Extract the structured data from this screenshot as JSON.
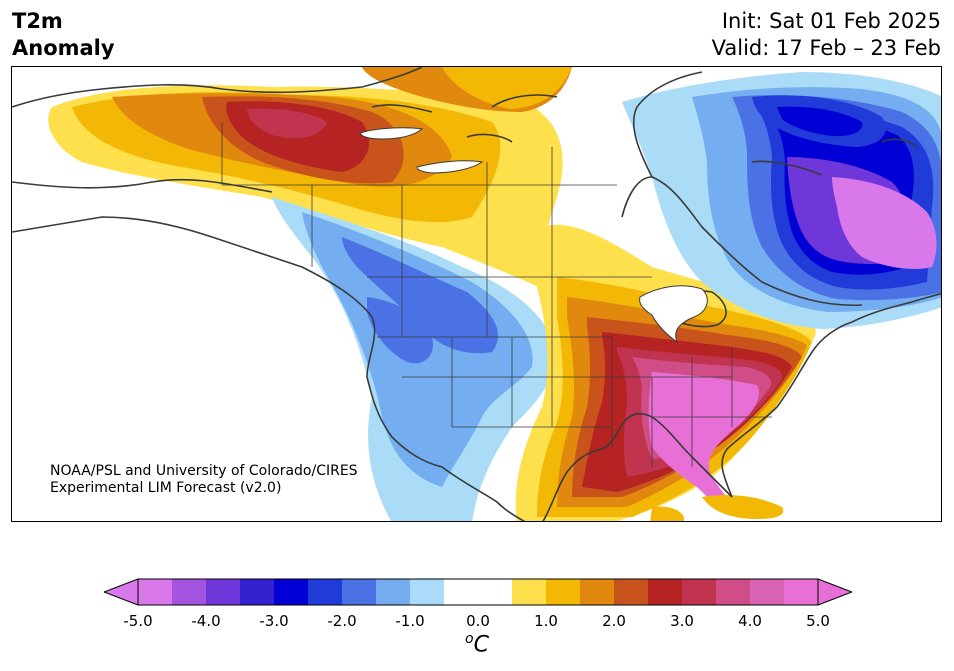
{
  "title": {
    "variable_line1": "T2m",
    "variable_line2": "Anomaly",
    "init": "Init: Sat 01 Feb 2025",
    "valid": "Valid: 17 Feb – 23 Feb"
  },
  "credit": {
    "line1": "NOAA/PSL and University of Colorado/CIRES",
    "line2": "Experimental LIM Forecast (v2.0)"
  },
  "colorbar": {
    "units_symbol": "o",
    "units_letter": "C",
    "ticks": [
      "-5.0",
      "-4.0",
      "-3.0",
      "-2.0",
      "-1.0",
      "0.0",
      "1.0",
      "2.0",
      "3.0",
      "4.0",
      "5.0"
    ],
    "colors": {
      "below_min": "#d978ea",
      "bins": [
        "#d978ea",
        "#a554e0",
        "#6f37da",
        "#3320cf",
        "#0000d4",
        "#213bd9",
        "#4a72e4",
        "#74aef0",
        "#aadcf8",
        "#ffffff",
        "#ffffff",
        "#fde04b",
        "#f3b705",
        "#e0890e",
        "#c9541b",
        "#b52323",
        "#c03450",
        "#d04d87",
        "#da64b4",
        "#e76fd6"
      ],
      "above_max": "#e76fd6"
    }
  },
  "map": {
    "region": "North America",
    "anomaly_colors": {
      "strong_warm": "#e76fd6",
      "warm_4": "#d04d87",
      "warm_3": "#b52323",
      "warm_2_5": "#c9541b",
      "warm_2": "#e0890e",
      "warm_1_5": "#f3b705",
      "warm_1": "#fde04b",
      "neutral": "#ffffff",
      "cool_1": "#aadcf8",
      "cool_1_5": "#74aef0",
      "cool_2": "#4a72e4",
      "cool_3": "#213bd9",
      "cool_3_5": "#0000d4",
      "cool_4": "#6f37da",
      "strong_cool": "#d978ea"
    }
  }
}
